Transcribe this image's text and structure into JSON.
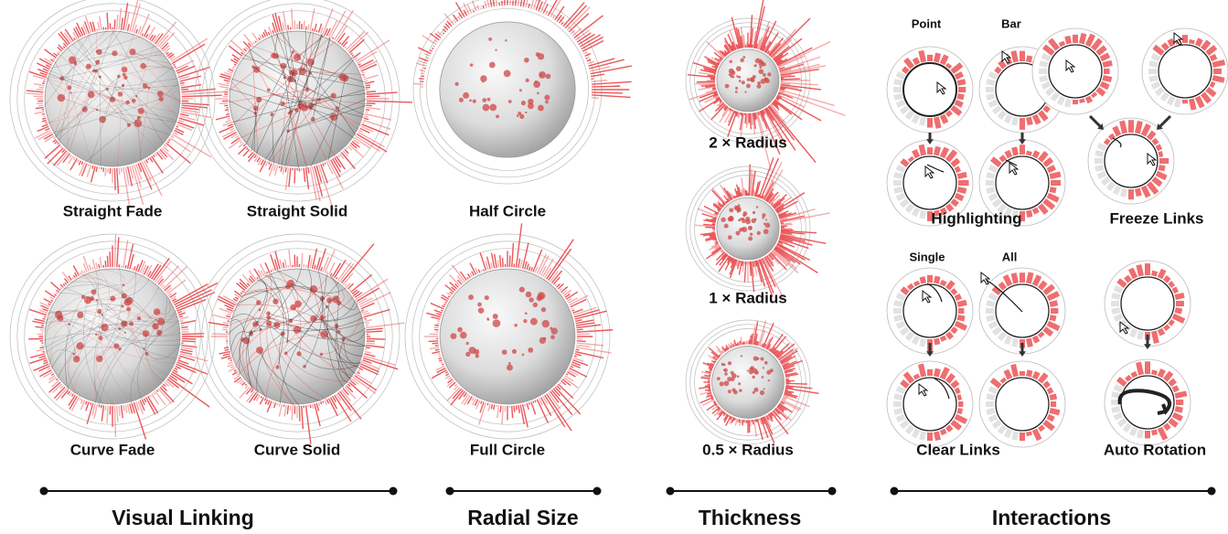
{
  "globes": [
    {
      "label": "Straight Fade"
    },
    {
      "label": "Straight Solid"
    },
    {
      "label": "Half Circle"
    },
    {
      "label": "Curve Fade"
    },
    {
      "label": "Curve Solid"
    },
    {
      "label": "Full Circle"
    },
    {
      "label": "2 × Radius"
    },
    {
      "label": "1 × Radius"
    },
    {
      "label": "0.5 × Radius"
    }
  ],
  "interactions": {
    "highlighting": {
      "label": "Highlighting",
      "modes": [
        "Point",
        "Bar"
      ]
    },
    "freeze_links": {
      "label": "Freeze Links"
    },
    "clear_links": {
      "label": "Clear Links",
      "modes": [
        "Single",
        "All"
      ]
    },
    "auto_rotation": {
      "label": "Auto Rotation"
    }
  },
  "sections": [
    "Visual Linking",
    "Radial Size",
    "Thickness",
    "Interactions"
  ]
}
